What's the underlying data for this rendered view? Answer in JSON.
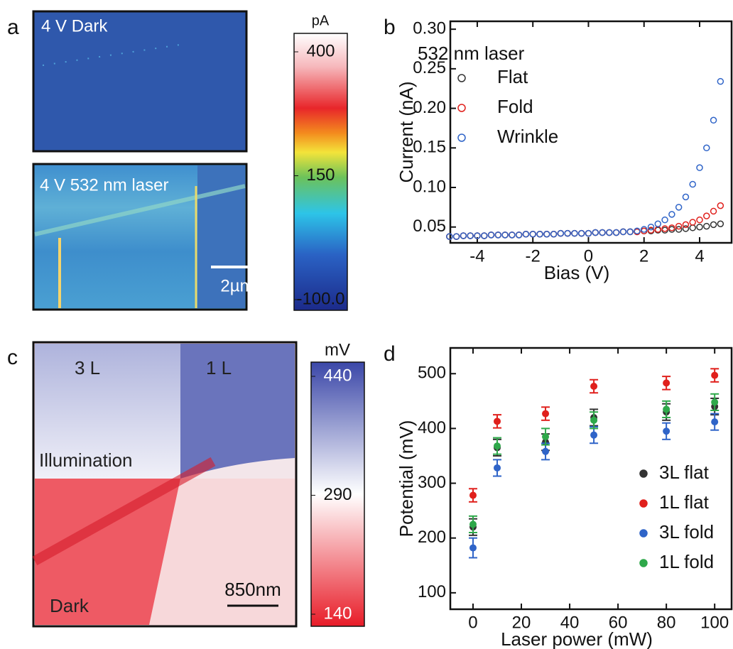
{
  "maps": [
    {
      "panel": "a",
      "images": [
        {
          "label": "4 V Dark"
        },
        {
          "label": "4 V 532 nm laser",
          "scale_bar": "2µm"
        }
      ],
      "colorbar": {
        "unit": "pA",
        "clim": [
          -100,
          400
        ],
        "ticks": [
          400,
          150,
          {
            "value": -100,
            "label": "-100.0"
          }
        ]
      }
    },
    {
      "panel": "c",
      "labels": [
        "3 L",
        "1 L",
        "Illumination",
        "Dark"
      ],
      "scale_bar": "850nm",
      "colorbar": {
        "unit": "mV",
        "clim": [
          140,
          440
        ],
        "ticks": [
          440,
          290,
          140
        ]
      }
    }
  ],
  "chart_data": [
    {
      "type": "scatter",
      "panel": "b",
      "xlabel": "Bias (V)",
      "ylabel": "Current (nA)",
      "legend_title": "532 nm laser",
      "legend": "upper left",
      "xlim": [
        -4.97,
        5.15
      ],
      "ylim": [
        0.03,
        0.31
      ],
      "xticks": [
        -4,
        -2,
        0,
        2,
        4
      ],
      "yticks": [
        0.05,
        {
          "value": 0.1,
          "label": "0.10"
        },
        0.15,
        {
          "value": 0.2,
          "label": "0.20"
        },
        0.25,
        {
          "value": 0.3,
          "label": "0.30"
        }
      ],
      "x": [
        -5,
        -4.75,
        -4.5,
        -4.25,
        -4,
        -3.75,
        -3.5,
        -3.25,
        -3,
        -2.75,
        -2.5,
        -2.25,
        -2,
        -1.75,
        -1.5,
        -1.25,
        -1,
        -0.75,
        -0.5,
        -0.25,
        0,
        0.25,
        0.5,
        0.75,
        1,
        1.25,
        1.5,
        1.75,
        2,
        2.25,
        2.5,
        2.75,
        3,
        3.25,
        3.5,
        3.75,
        4,
        4.25,
        4.5,
        4.75
      ],
      "series": [
        {
          "name": "Flat",
          "color": "#333333",
          "values": [
            0.038,
            0.038,
            0.039,
            0.039,
            0.039,
            0.039,
            0.04,
            0.04,
            0.04,
            0.04,
            0.04,
            0.041,
            0.041,
            0.041,
            0.041,
            0.041,
            0.042,
            0.042,
            0.042,
            0.042,
            0.042,
            0.043,
            0.043,
            0.043,
            0.043,
            0.044,
            0.044,
            0.044,
            0.045,
            0.045,
            0.046,
            0.046,
            0.047,
            0.047,
            0.048,
            0.049,
            0.05,
            0.051,
            0.053,
            0.054
          ]
        },
        {
          "name": "Fold",
          "color": "#e0201c",
          "values": [
            0.038,
            0.038,
            0.039,
            0.039,
            0.039,
            0.039,
            0.04,
            0.04,
            0.04,
            0.04,
            0.04,
            0.041,
            0.041,
            0.041,
            0.041,
            0.041,
            0.042,
            0.042,
            0.042,
            0.042,
            0.042,
            0.043,
            0.043,
            0.043,
            0.043,
            0.044,
            0.044,
            0.044,
            0.045,
            0.046,
            0.047,
            0.048,
            0.049,
            0.051,
            0.053,
            0.056,
            0.059,
            0.064,
            0.07,
            0.077
          ]
        },
        {
          "name": "Wrinkle",
          "color": "#2f64c8",
          "values": [
            0.038,
            0.038,
            0.039,
            0.039,
            0.039,
            0.039,
            0.04,
            0.04,
            0.04,
            0.04,
            0.04,
            0.041,
            0.041,
            0.041,
            0.041,
            0.041,
            0.042,
            0.042,
            0.042,
            0.042,
            0.042,
            0.043,
            0.043,
            0.043,
            0.043,
            0.044,
            0.044,
            0.045,
            0.047,
            0.05,
            0.054,
            0.059,
            0.066,
            0.075,
            0.088,
            0.104,
            0.125,
            0.15,
            0.185,
            0.234
          ]
        }
      ]
    },
    {
      "type": "errorbar",
      "panel": "d",
      "xlabel": "Laser power (mW)",
      "ylabel": "Potential (mV)",
      "legend": "lower right",
      "xlim": [
        -9.4,
        107
      ],
      "ylim": [
        70,
        547
      ],
      "xticks": [
        0,
        20,
        40,
        60,
        80,
        100
      ],
      "yticks": [
        100,
        200,
        300,
        400,
        500
      ],
      "x": [
        0,
        10,
        30,
        50,
        80,
        100
      ],
      "series": [
        {
          "name": "3L flat",
          "color": "#333333",
          "values": [
            220,
            365,
            375,
            420,
            430,
            440
          ],
          "errors": [
            15,
            15,
            15,
            15,
            15,
            15
          ]
        },
        {
          "name": "1L flat",
          "color": "#e0201c",
          "values": [
            278,
            413,
            427,
            477,
            483,
            497
          ],
          "errors": [
            12,
            12,
            12,
            12,
            12,
            12
          ]
        },
        {
          "name": "3L fold",
          "color": "#2f64c8",
          "values": [
            182,
            328,
            358,
            388,
            395,
            412
          ],
          "errors": [
            18,
            15,
            15,
            15,
            15,
            15
          ]
        },
        {
          "name": "1L fold",
          "color": "#2ea84a",
          "values": [
            225,
            368,
            385,
            415,
            435,
            448
          ],
          "errors": [
            15,
            15,
            15,
            15,
            15,
            15
          ]
        }
      ]
    }
  ]
}
